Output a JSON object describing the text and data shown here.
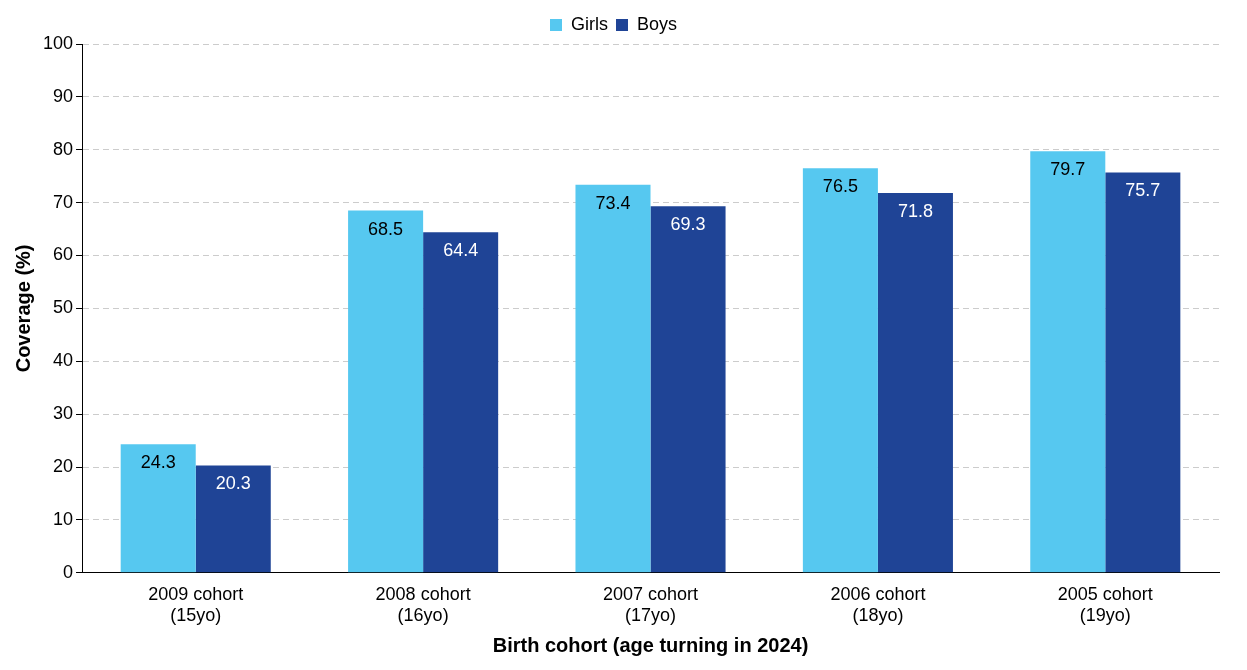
{
  "chart_data": {
    "type": "bar",
    "xlabel": "Birth cohort (age turning in 2024)",
    "ylabel": "Coverage (%)",
    "categories": [
      "2009 cohort\n(15yo)",
      "2008 cohort\n(16yo)",
      "2007 cohort\n(17yo)",
      "2006 cohort\n(18yo)",
      "2005 cohort\n(19yo)"
    ],
    "series": [
      {
        "name": "Girls",
        "color": "#56c8f0",
        "values": [
          24.3,
          68.5,
          73.4,
          76.5,
          79.7
        ]
      },
      {
        "name": "Boys",
        "color": "#1f4496",
        "values": [
          20.3,
          64.4,
          69.3,
          71.8,
          75.7
        ]
      }
    ],
    "ylim": [
      0,
      100
    ],
    "yticks": [
      0,
      10,
      20,
      30,
      40,
      50,
      60,
      70,
      80,
      90,
      100
    ],
    "grid": "y",
    "legend": "top",
    "data_labels": true
  }
}
